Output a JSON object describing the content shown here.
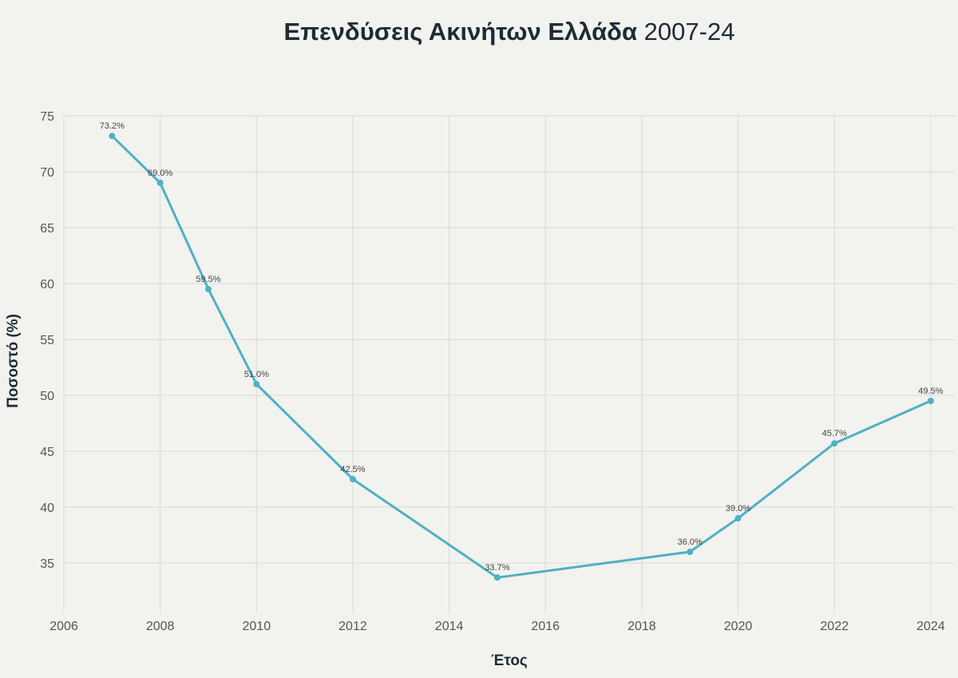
{
  "title": {
    "bold": "Επενδύσεις Ακινήτων Ελλάδα",
    "normal": "2007-24"
  },
  "chart_data": {
    "type": "line",
    "title": "Επενδύσεις Ακινήτων Ελλάδα 2007-24",
    "xlabel": "Έτος",
    "ylabel": "Ποσοστό (%)",
    "xlim": [
      2006,
      2024.5
    ],
    "ylim": [
      30.5,
      75
    ],
    "xticks": [
      2006,
      2008,
      2010,
      2012,
      2014,
      2016,
      2018,
      2020,
      2022,
      2024
    ],
    "yticks": [
      35,
      40,
      45,
      50,
      55,
      60,
      65,
      70,
      75
    ],
    "grid": true,
    "series": [
      {
        "x": [
          2007,
          2008,
          2009,
          2010,
          2012,
          2015,
          2019,
          2020,
          2022,
          2024
        ],
        "y": [
          73.2,
          69.0,
          59.5,
          51.0,
          42.5,
          33.7,
          36.0,
          39.0,
          45.7,
          49.5
        ],
        "labels": [
          "73.2%",
          "69.0%",
          "59.5%",
          "51.0%",
          "42.5%",
          "33.7%",
          "36.0%",
          "39.0%",
          "45.7%",
          "49.5%"
        ],
        "color": "#4fb0c6"
      }
    ]
  },
  "colors": {
    "background": "#f2f2ee",
    "grid": "#d9d9d6",
    "line": "#4fb0c6",
    "text": "#1d2b36",
    "tick": "#555555"
  }
}
